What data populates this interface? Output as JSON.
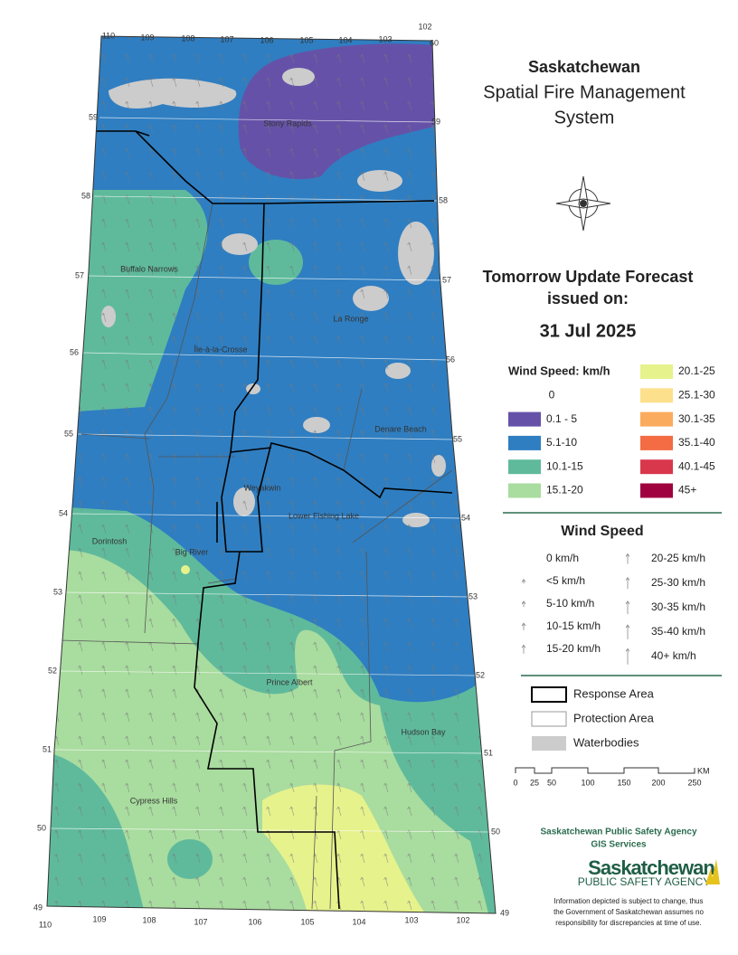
{
  "title": [
    "Saskatchewan",
    "Spatial Fire Management",
    "System"
  ],
  "forecast": {
    "heading": [
      "Tomorrow Update Forecast",
      "issued on:"
    ],
    "date": "31 Jul 2025"
  },
  "speed_legend": {
    "title": "Wind Speed: km/h",
    "classes": [
      {
        "label": "0",
        "color": "#ffffff"
      },
      {
        "label": "0.1 - 5",
        "color": "#6552a8"
      },
      {
        "label": "5.1-10",
        "color": "#2f7ec1"
      },
      {
        "label": "10.1-15",
        "color": "#5fba9c"
      },
      {
        "label": "15.1-20",
        "color": "#a9dc9f"
      },
      {
        "label": "20.1-25",
        "color": "#e6f28c"
      },
      {
        "label": "25.1-30",
        "color": "#fde08c"
      },
      {
        "label": "30.1-35",
        "color": "#fbab5e"
      },
      {
        "label": "35.1-40",
        "color": "#f36c44"
      },
      {
        "label": "40.1-45",
        "color": "#d9374b"
      },
      {
        "label": "45+",
        "color": "#a0023f"
      }
    ]
  },
  "arrow_legend": {
    "title": "Wind Speed",
    "items": [
      "0 km/h",
      "<5 km/h",
      "5-10 km/h",
      "10-15 km/h",
      "15-20 km/h",
      "20-25 km/h",
      "25-30 km/h",
      "30-35 km/h",
      "35-40 km/h",
      "40+ km/h"
    ]
  },
  "boundary_legend": [
    "Response Area",
    "Protection Area",
    "Waterbodies"
  ],
  "scale_bar": {
    "labels": [
      "0",
      "25",
      "50",
      "100",
      "150",
      "200",
      "250"
    ],
    "unit": "KM"
  },
  "places": [
    "Stony Rapids",
    "Buffalo Narrows",
    "La Ronge",
    "Île-à-la-Crosse",
    "Denare Beach",
    "Weyakwin",
    "Lower Fishing Lake",
    "Dorintosh",
    "Big River",
    "Prince Albert",
    "Hudson Bay",
    "Cypress Hills"
  ],
  "graticule": {
    "top": [
      "110",
      "109",
      "108",
      "107",
      "106",
      "105",
      "104",
      "103",
      "102",
      "60"
    ],
    "bottom": [
      "110",
      "109",
      "108",
      "107",
      "106",
      "105",
      "104",
      "103",
      "102"
    ],
    "left": [
      "59",
      "58",
      "57",
      "56",
      "55",
      "54",
      "53",
      "52",
      "51",
      "50",
      "49"
    ],
    "right": [
      "59",
      "58",
      "57",
      "56",
      "55",
      "54",
      "53",
      "52",
      "51",
      "50",
      "49"
    ]
  },
  "footer": {
    "agency": "Saskatchewan Public Safety Agency",
    "unit": "GIS  Services",
    "logo": [
      "Saskatchewan",
      "PUBLIC SAFETY AGENCY"
    ],
    "disclaimer": [
      "Information depicted is subject to change, thus",
      "the Government of Saskatchewan assumes no",
      "responsibility for discrepancies at time of use."
    ]
  }
}
